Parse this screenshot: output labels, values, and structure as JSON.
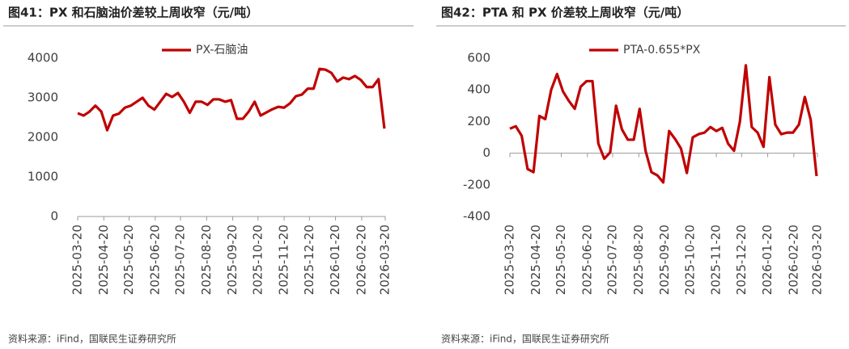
{
  "chart_data": [
    {
      "type": "line",
      "title": "图41：PX 和石脑油价差较上周收窄（元/吨）",
      "source": "资料来源：iFind，国联民生证券研究所",
      "x": [
        "2025-03-20",
        "2025-03-27",
        "2025-04-03",
        "2025-04-10",
        "2025-04-17",
        "2025-04-24",
        "2025-05-01",
        "2025-05-08",
        "2025-05-15",
        "2025-05-22",
        "2025-05-29",
        "2025-06-05",
        "2025-06-12",
        "2025-06-19",
        "2025-06-26",
        "2025-07-03",
        "2025-07-10",
        "2025-07-17",
        "2025-07-24",
        "2025-07-31",
        "2025-08-07",
        "2025-08-14",
        "2025-08-21",
        "2025-08-28",
        "2025-09-04",
        "2025-09-11",
        "2025-09-18",
        "2025-09-25",
        "2025-10-02",
        "2025-10-09",
        "2025-10-16",
        "2025-10-23",
        "2025-10-30",
        "2025-11-06",
        "2025-11-13",
        "2025-11-20",
        "2025-11-27",
        "2025-12-04",
        "2025-12-11",
        "2025-12-18",
        "2025-12-25",
        "2026-01-01",
        "2026-01-08",
        "2026-01-15",
        "2026-01-22",
        "2026-01-29",
        "2026-02-05",
        "2026-02-12",
        "2026-02-19",
        "2026-02-26",
        "2026-03-05",
        "2026-03-12",
        "2026-03-19"
      ],
      "series": [
        {
          "name": "PX-石脑油",
          "color": "#c00000",
          "values": [
            2610,
            2550,
            2650,
            2800,
            2650,
            2180,
            2550,
            2600,
            2750,
            2800,
            2900,
            3000,
            2800,
            2700,
            2900,
            3100,
            3020,
            3120,
            2900,
            2620,
            2900,
            2900,
            2820,
            2960,
            2960,
            2900,
            2940,
            2470,
            2470,
            2650,
            2900,
            2550,
            2630,
            2710,
            2770,
            2750,
            2860,
            3040,
            3080,
            3230,
            3230,
            3730,
            3710,
            3630,
            3410,
            3510,
            3470,
            3550,
            3450,
            3270,
            3270,
            3470,
            2220
          ]
        }
      ],
      "xlim": [
        "2025-03-20",
        "2026-03-20"
      ],
      "xticks": [
        "2025-03-20",
        "2025-04-20",
        "2025-05-20",
        "2025-06-20",
        "2025-07-20",
        "2025-08-20",
        "2025-09-20",
        "2025-10-20",
        "2025-11-20",
        "2025-12-20",
        "2026-01-20",
        "2026-02-20",
        "2026-03-20"
      ],
      "ylim": [
        0,
        4000
      ],
      "yticks": [
        0,
        1000,
        2000,
        3000,
        4000
      ]
    },
    {
      "type": "line",
      "title": "图42：PTA 和 PX 价差较上周收窄（元/吨）",
      "source": "资料来源：iFind，国联民生证券研究所",
      "x": [
        "2025-03-20",
        "2025-03-27",
        "2025-04-03",
        "2025-04-10",
        "2025-04-17",
        "2025-04-24",
        "2025-05-01",
        "2025-05-08",
        "2025-05-15",
        "2025-05-22",
        "2025-05-29",
        "2025-06-05",
        "2025-06-12",
        "2025-06-19",
        "2025-06-26",
        "2025-07-03",
        "2025-07-10",
        "2025-07-17",
        "2025-07-24",
        "2025-07-31",
        "2025-08-07",
        "2025-08-14",
        "2025-08-21",
        "2025-08-28",
        "2025-09-04",
        "2025-09-11",
        "2025-09-18",
        "2025-09-25",
        "2025-10-02",
        "2025-10-09",
        "2025-10-16",
        "2025-10-23",
        "2025-10-30",
        "2025-11-06",
        "2025-11-13",
        "2025-11-20",
        "2025-11-27",
        "2025-12-04",
        "2025-12-11",
        "2025-12-18",
        "2025-12-25",
        "2026-01-01",
        "2026-01-08",
        "2026-01-15",
        "2026-01-22",
        "2026-01-29",
        "2026-02-05",
        "2026-02-12",
        "2026-02-19",
        "2026-02-26",
        "2026-03-05",
        "2026-03-12",
        "2026-03-19"
      ],
      "series": [
        {
          "name": "PTA-0.655*PX",
          "color": "#c00000",
          "values": [
            155,
            170,
            110,
            -100,
            -120,
            235,
            215,
            400,
            500,
            390,
            330,
            280,
            420,
            455,
            455,
            60,
            -35,
            5,
            300,
            150,
            85,
            85,
            280,
            15,
            -120,
            -140,
            -185,
            140,
            90,
            30,
            -125,
            100,
            120,
            130,
            165,
            140,
            160,
            60,
            15,
            200,
            555,
            165,
            130,
            40,
            480,
            180,
            120,
            130,
            130,
            180,
            355,
            210,
            -145
          ]
        }
      ],
      "xlim": [
        "2025-03-20",
        "2026-03-20"
      ],
      "xticks": [
        "2025-03-20",
        "2025-04-20",
        "2025-05-20",
        "2025-06-20",
        "2025-07-20",
        "2025-08-20",
        "2025-09-20",
        "2025-10-20",
        "2025-11-20",
        "2025-12-20",
        "2026-01-20",
        "2026-02-20",
        "2026-03-20"
      ],
      "ylim": [
        -400,
        600
      ],
      "yticks": [
        -400,
        -200,
        0,
        200,
        400,
        600
      ]
    }
  ]
}
